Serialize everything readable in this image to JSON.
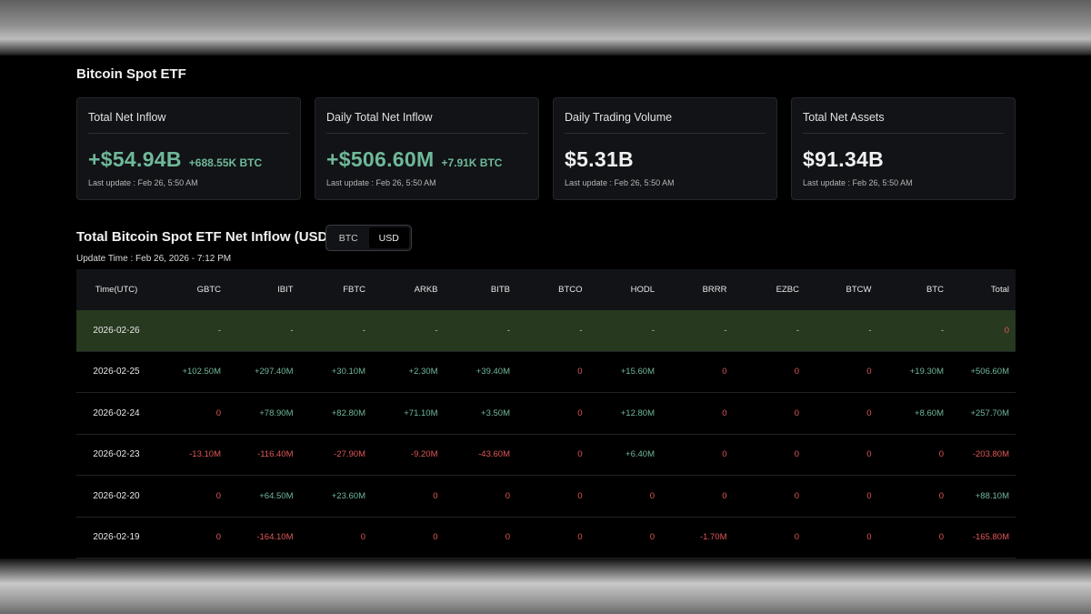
{
  "page_title": "Bitcoin Spot ETF",
  "cards": [
    {
      "label": "Total Net Inflow",
      "value": "+$54.94B",
      "sub": "+688.55K BTC",
      "update": "Last update : Feb 26, 5:50 AM"
    },
    {
      "label": "Daily Total Net Inflow",
      "value": "+$506.60M",
      "sub": "+7.91K BTC",
      "update": "Last update : Feb 26, 5:50 AM"
    },
    {
      "label": "Daily Trading Volume",
      "value": "$5.31B",
      "sub": "",
      "update": "Last update : Feb 26, 5:50 AM"
    },
    {
      "label": "Total Net Assets",
      "value": "$91.34B",
      "sub": "",
      "update": "Last update : Feb 26, 5:50 AM"
    }
  ],
  "section_title": "Total Bitcoin Spot ETF Net Inflow (USD)",
  "toggle": {
    "btc": "BTC",
    "usd": "USD",
    "selected": "USD"
  },
  "update_time": "Update Time : Feb 26, 2026 - 7:12 PM",
  "colors": {
    "positive": "#6fb89a",
    "negative": "#e0585a",
    "highlight_row": "#27391f"
  },
  "table": {
    "headers": [
      "Time(UTC)",
      "GBTC",
      "IBIT",
      "FBTC",
      "ARKB",
      "BITB",
      "BTCO",
      "HODL",
      "BRRR",
      "EZBC",
      "BTCW",
      "BTC",
      "Total"
    ],
    "rows": [
      {
        "date": "2026-02-26",
        "cells": [
          "-",
          "-",
          "-",
          "-",
          "-",
          "-",
          "-",
          "-",
          "-",
          "-",
          "-",
          "0"
        ]
      },
      {
        "date": "2026-02-25",
        "cells": [
          "+102.50M",
          "+297.40M",
          "+30.10M",
          "+2.30M",
          "+39.40M",
          "0",
          "+15.60M",
          "0",
          "0",
          "0",
          "+19.30M",
          "+506.60M"
        ]
      },
      {
        "date": "2026-02-24",
        "cells": [
          "0",
          "+78.90M",
          "+82.80M",
          "+71.10M",
          "+3.50M",
          "0",
          "+12.80M",
          "0",
          "0",
          "0",
          "+8.60M",
          "+257.70M"
        ]
      },
      {
        "date": "2026-02-23",
        "cells": [
          "-13.10M",
          "-116.40M",
          "-27.90M",
          "-9.20M",
          "-43.60M",
          "0",
          "+6.40M",
          "0",
          "0",
          "0",
          "0",
          "-203.80M"
        ]
      },
      {
        "date": "2026-02-20",
        "cells": [
          "0",
          "+64.50M",
          "+23.60M",
          "0",
          "0",
          "0",
          "0",
          "0",
          "0",
          "0",
          "0",
          "+88.10M"
        ]
      },
      {
        "date": "2026-02-19",
        "cells": [
          "0",
          "-164.10M",
          "0",
          "0",
          "0",
          "0",
          "0",
          "-1.70M",
          "0",
          "0",
          "0",
          "-165.80M"
        ]
      }
    ]
  }
}
